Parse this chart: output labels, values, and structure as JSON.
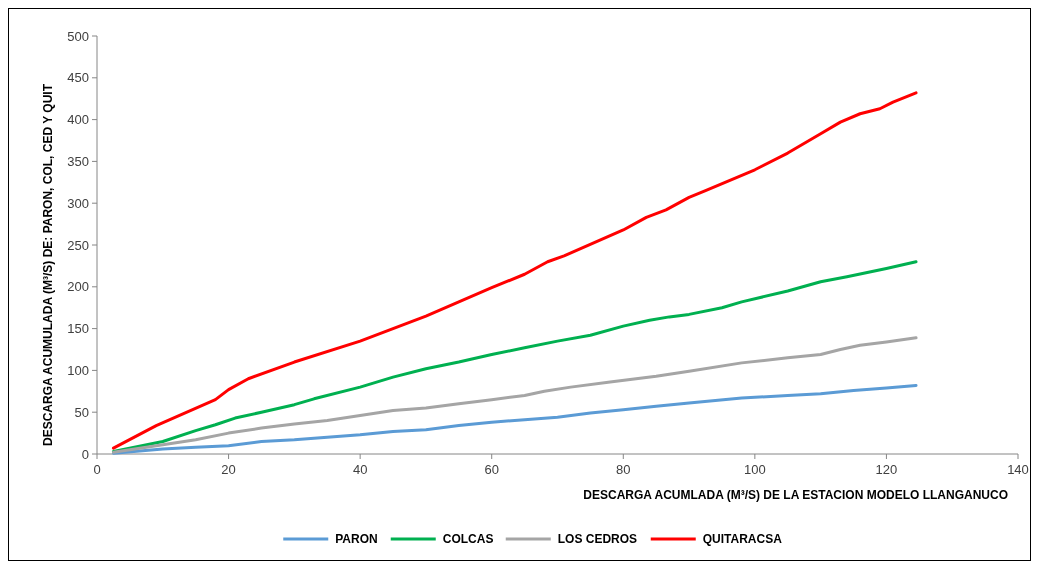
{
  "chart_data": {
    "type": "line",
    "xlabel": "DESCARGA ACUMLADA (M³/S) DE LA  ESTACION MODELO LLANGANUCO",
    "ylabel": "DESCARGA ACUMULADA (M³/S) DE: PARON, COL, CED Y QUIT",
    "xlim": [
      0,
      140
    ],
    "xticks": [
      0,
      20,
      40,
      60,
      80,
      100,
      120,
      140
    ],
    "ylim": [
      0,
      500
    ],
    "yticks": [
      0,
      50,
      100,
      150,
      200,
      250,
      300,
      350,
      400,
      450,
      500
    ],
    "grid": false,
    "legend": "bottom",
    "marker": "none",
    "line_style": "solid",
    "series": [
      {
        "name": "PARON",
        "color": "#5b9bd5",
        "x": [
          2.5,
          10,
          15,
          20,
          25,
          30,
          35,
          40,
          45,
          50,
          55,
          60,
          65,
          70,
          75,
          80,
          85,
          90,
          98,
          105,
          110,
          115,
          120,
          124.5
        ],
        "values": [
          1,
          6,
          8,
          10,
          15,
          17,
          20,
          23,
          27,
          29,
          34,
          38,
          41,
          44,
          49,
          53,
          57,
          61,
          67,
          70,
          72,
          76,
          79,
          82
        ]
      },
      {
        "name": "COLCAS",
        "color": "#00b050",
        "x": [
          2.5,
          10,
          15,
          18,
          21,
          25,
          30,
          33,
          40,
          45,
          50,
          55,
          60,
          65,
          70,
          75,
          80,
          84,
          87,
          90,
          95,
          98,
          105,
          110,
          114,
          120,
          124.5
        ],
        "values": [
          3,
          15,
          28,
          35,
          43,
          50,
          59,
          66,
          80,
          92,
          102,
          110,
          119,
          127,
          135,
          142,
          153,
          160,
          164,
          167,
          175,
          182,
          195,
          206,
          212,
          222,
          230
        ]
      },
      {
        "name": "LOS CEDROS",
        "color": "#a5a5a5",
        "x": [
          2.5,
          10,
          15,
          20,
          25,
          30,
          35,
          40,
          45,
          50,
          55,
          60,
          65,
          68,
          72,
          78,
          85,
          90,
          98,
          105,
          110,
          113,
          116,
          120,
          124.5
        ],
        "values": [
          2,
          11,
          17,
          25,
          31,
          36,
          40,
          46,
          52,
          55,
          60,
          65,
          70,
          75,
          80,
          86,
          93,
          99,
          109,
          115,
          119,
          125,
          130,
          134,
          139
        ]
      },
      {
        "name": "QUITARACSA",
        "color": "#ff0000",
        "x": [
          2.5,
          9,
          18,
          20,
          23,
          30,
          40,
          50,
          60,
          65,
          68.5,
          71,
          80,
          83.5,
          86.5,
          90,
          92.5,
          100,
          105,
          110,
          113,
          116,
          119,
          121,
          124.5
        ],
        "values": [
          7,
          34,
          65,
          77,
          90,
          110,
          135,
          165,
          199,
          215,
          230,
          237,
          268,
          283,
          292,
          307,
          315,
          340,
          360,
          383,
          397,
          407,
          413,
          421,
          432
        ]
      }
    ]
  }
}
